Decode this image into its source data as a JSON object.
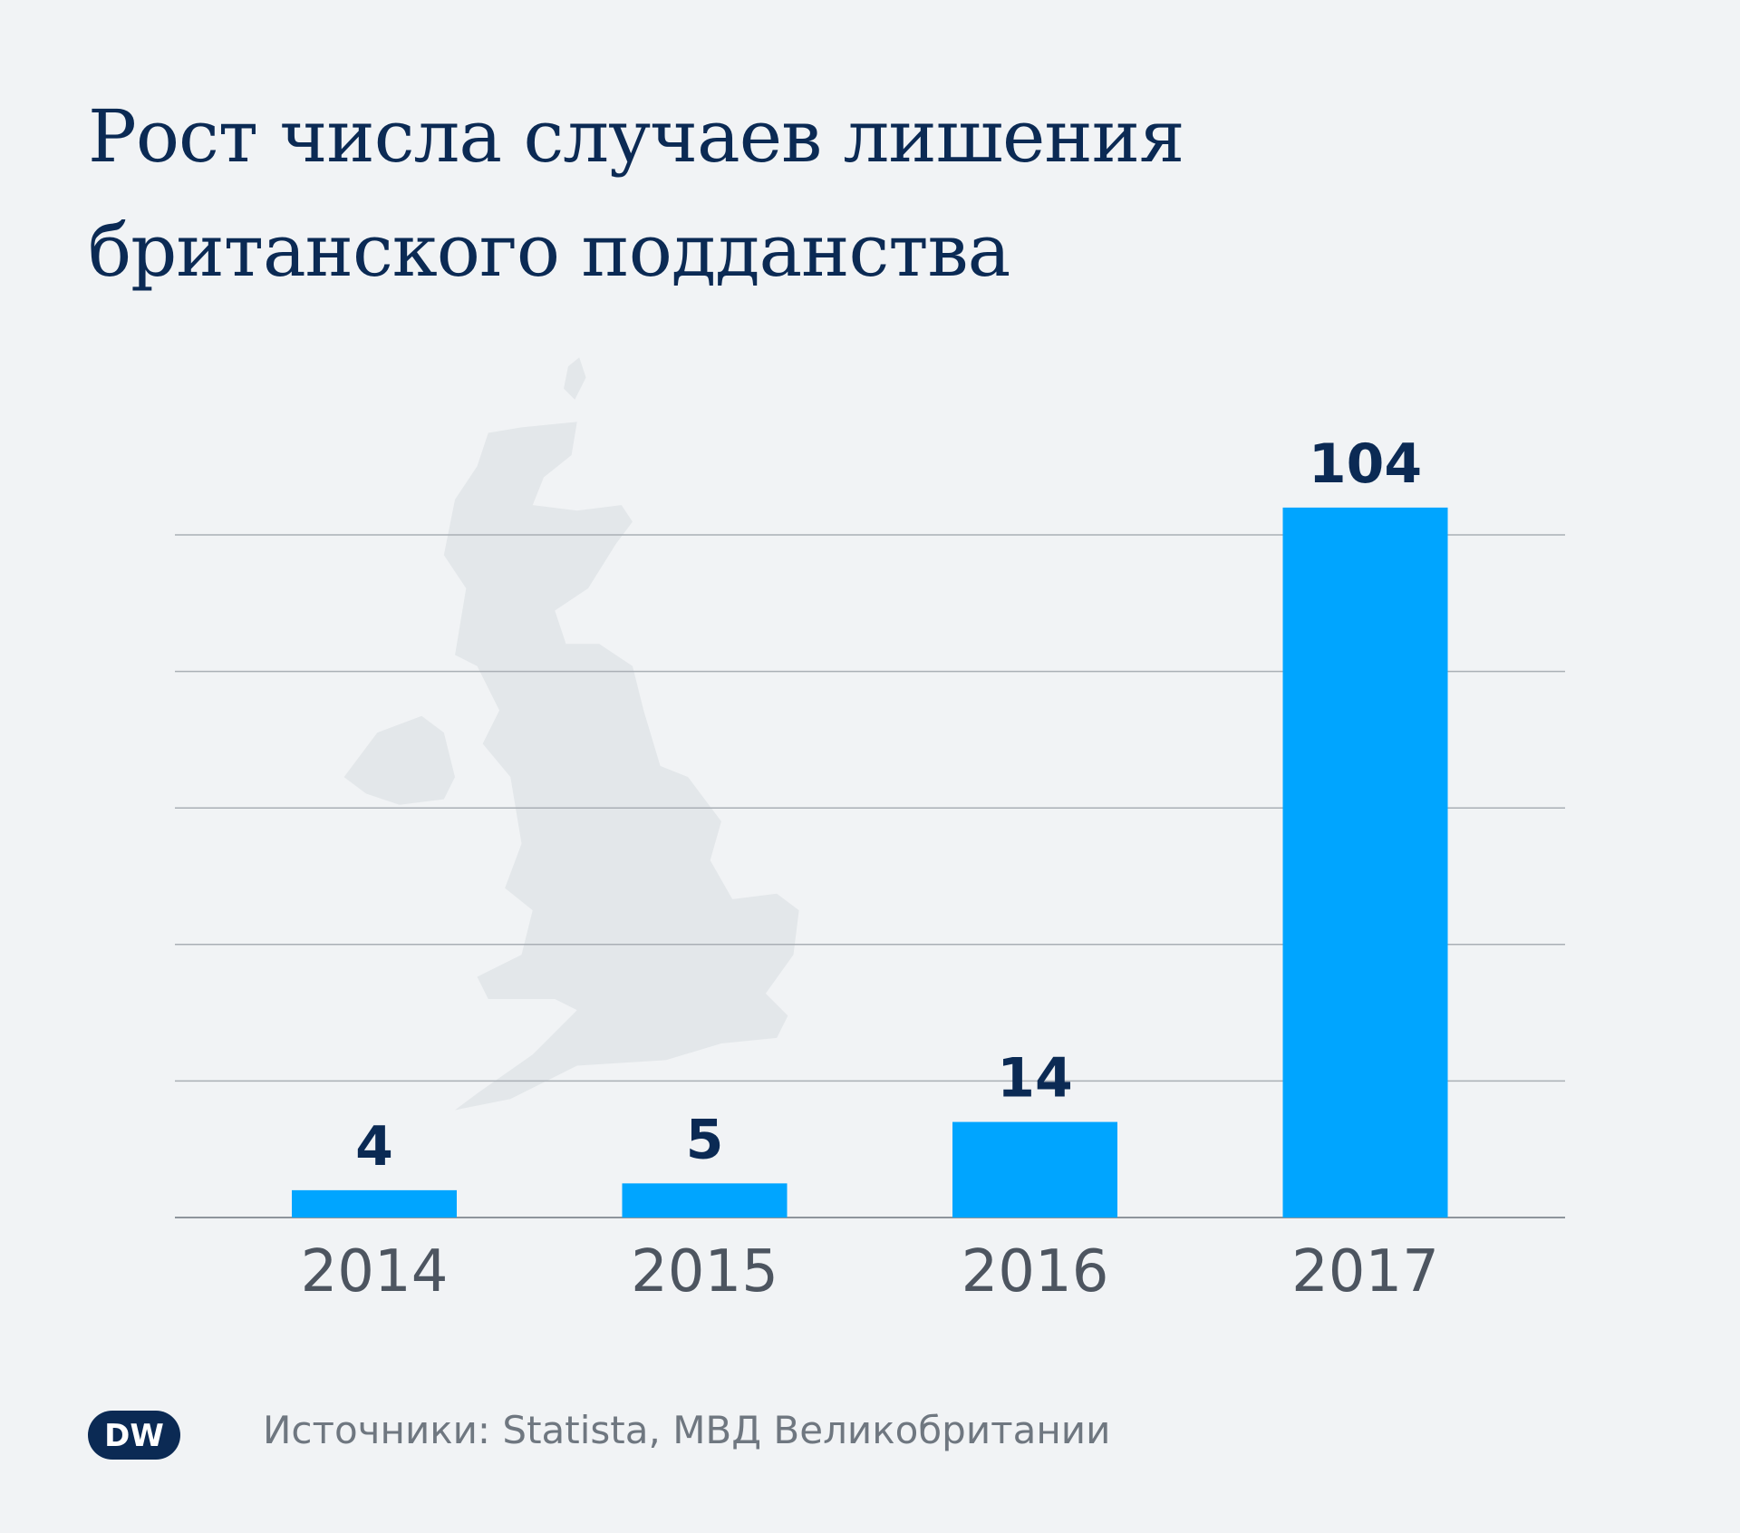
{
  "title_lines": [
    "Рост числа случаев лишения",
    "британского подданства"
  ],
  "chart_data": {
    "type": "bar",
    "title": "Рост числа случаев лишения британского подданства",
    "categories": [
      "2014",
      "2015",
      "2016",
      "2017"
    ],
    "values": [
      4,
      5,
      14,
      104
    ],
    "xlabel": "",
    "ylabel": "",
    "ylim": [
      0,
      104
    ],
    "gridlines": [
      20,
      40,
      60,
      80,
      100
    ],
    "grid": true,
    "bar_color": "#00a5ff",
    "label_color": "#0b2a54",
    "tick_label_color": "#4d5560"
  },
  "background_map": "united-kingdom-silhouette",
  "footer": {
    "source": "Источники: Statista, МВД Великобритании",
    "logo": "DW"
  }
}
